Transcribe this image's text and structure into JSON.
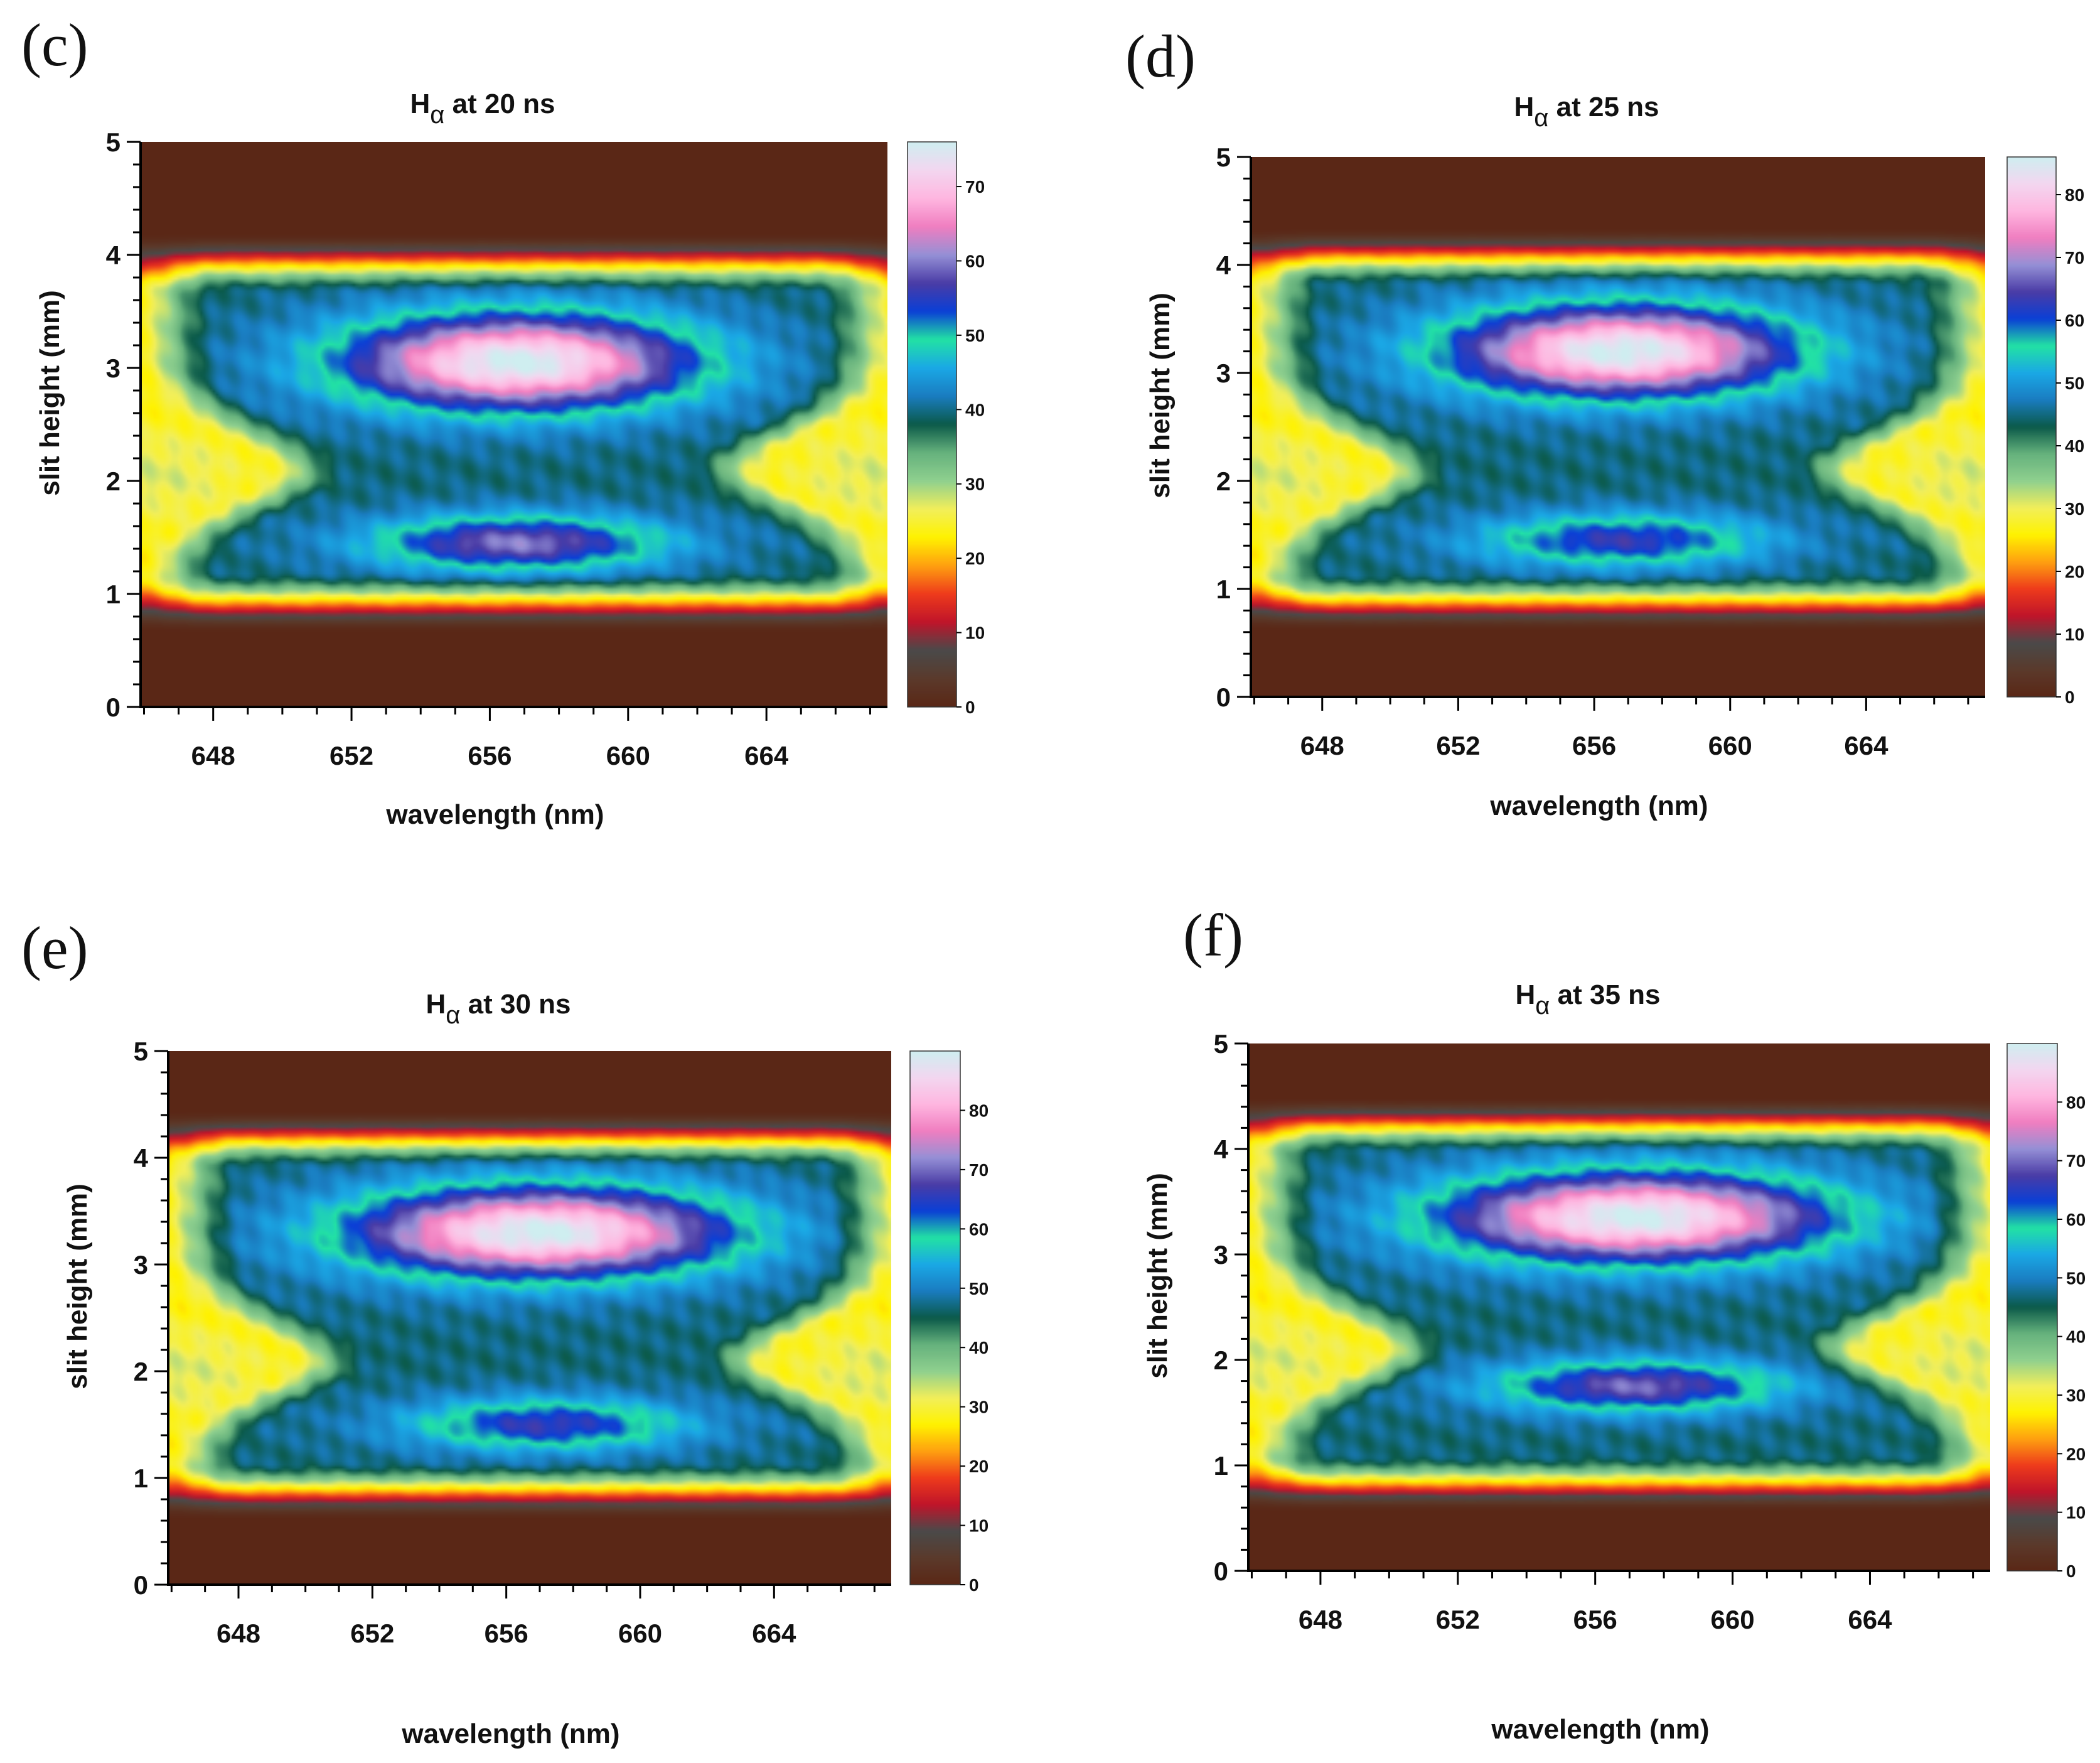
{
  "figure": {
    "xlabel": "wavelength (nm)",
    "ylabel": "slit height (mm)",
    "title_prefix": "H",
    "title_sub": "α"
  },
  "chart_data": [
    {
      "type": "heatmap",
      "panel_label": "(c)",
      "title": "Hα at 20 ns",
      "title_suffix": " at 20 ns",
      "xlabel": "wavelength (nm)",
      "ylabel": "slit height (mm)",
      "xlim": [
        645.9,
        667.5
      ],
      "ylim": [
        0,
        5
      ],
      "xticks": [
        648,
        652,
        656,
        660,
        664
      ],
      "yticks": [
        0,
        1,
        2,
        3,
        4,
        5
      ],
      "colorbar": {
        "min": 0,
        "max": 76,
        "ticks": [
          0,
          10,
          20,
          30,
          40,
          50,
          60,
          70
        ]
      },
      "features": {
        "band_low_mm": 1.0,
        "band_high_mm": 3.85,
        "upper_lobe": {
          "center_nm": 656.8,
          "center_mm": 3.05,
          "peak": 76
        },
        "lower_lobe": {
          "center_nm": 656.8,
          "center_mm": 1.45,
          "peak": 60
        },
        "side_wings_mm": 2.05,
        "side_wing_value": 22
      }
    },
    {
      "type": "heatmap",
      "panel_label": "(d)",
      "title": "Hα at 25 ns",
      "title_suffix": " at 25 ns",
      "xlabel": "wavelength (nm)",
      "ylabel": "slit height (mm)",
      "xlim": [
        645.9,
        667.5
      ],
      "ylim": [
        0,
        5
      ],
      "xticks": [
        648,
        652,
        656,
        660,
        664
      ],
      "yticks": [
        0,
        1,
        2,
        3,
        4,
        5
      ],
      "colorbar": {
        "min": 0,
        "max": 86,
        "ticks": [
          0,
          10,
          20,
          30,
          40,
          50,
          60,
          70,
          80
        ]
      },
      "features": {
        "band_low_mm": 0.95,
        "band_high_mm": 4.0,
        "upper_lobe": {
          "center_nm": 656.8,
          "center_mm": 3.2,
          "peak": 86
        },
        "lower_lobe": {
          "center_nm": 656.8,
          "center_mm": 1.45,
          "peak": 63
        },
        "side_wings_mm": 2.05,
        "side_wing_value": 23
      }
    },
    {
      "type": "heatmap",
      "panel_label": "(e)",
      "title": "Hα at 30 ns",
      "title_suffix": " at 30 ns",
      "xlabel": "wavelength (nm)",
      "ylabel": "slit height (mm)",
      "xlim": [
        645.9,
        667.5
      ],
      "ylim": [
        0,
        5
      ],
      "xticks": [
        648,
        652,
        656,
        660,
        664
      ],
      "yticks": [
        0,
        1,
        2,
        3,
        4,
        5
      ],
      "colorbar": {
        "min": 0,
        "max": 90,
        "ticks": [
          0,
          10,
          20,
          30,
          40,
          50,
          60,
          70,
          80
        ]
      },
      "features": {
        "band_low_mm": 0.95,
        "band_high_mm": 4.1,
        "upper_lobe": {
          "center_nm": 657.0,
          "center_mm": 3.3,
          "peak": 90
        },
        "lower_lobe": {
          "center_nm": 657.2,
          "center_mm": 1.5,
          "peak": 66
        },
        "side_wings_mm": 2.0,
        "side_wing_value": 23
      }
    },
    {
      "type": "heatmap",
      "panel_label": "(f)",
      "title": "Hα at 35 ns",
      "title_suffix": " at 35 ns",
      "xlabel": "wavelength (nm)",
      "ylabel": "slit height (mm)",
      "xlim": [
        645.9,
        667.5
      ],
      "ylim": [
        0,
        5
      ],
      "xticks": [
        648,
        652,
        656,
        660,
        664
      ],
      "yticks": [
        0,
        1,
        2,
        3,
        4,
        5
      ],
      "colorbar": {
        "min": 0,
        "max": 90,
        "ticks": [
          0,
          10,
          20,
          30,
          40,
          50,
          60,
          70,
          80
        ]
      },
      "features": {
        "band_low_mm": 0.9,
        "band_high_mm": 4.15,
        "upper_lobe": {
          "center_nm": 657.2,
          "center_mm": 3.35,
          "peak": 90
        },
        "lower_lobe": {
          "center_nm": 657.2,
          "center_mm": 1.75,
          "peak": 70
        },
        "side_wings_mm": 2.0,
        "side_wing_value": 22
      }
    }
  ],
  "colormap": [
    "#5a2716",
    "#5b3a2b",
    "#4a4a4a",
    "#c0142a",
    "#ee3b1c",
    "#ffa010",
    "#fff200",
    "#f2ef5a",
    "#8fd08f",
    "#66b27d",
    "#0b5a49",
    "#1a7cc0",
    "#1aa8e6",
    "#22e2a4",
    "#0b3fd6",
    "#4a3ca6",
    "#9590d6",
    "#f07ec0",
    "#ffb6e0",
    "#f3d7f0",
    "#cfeef0"
  ]
}
